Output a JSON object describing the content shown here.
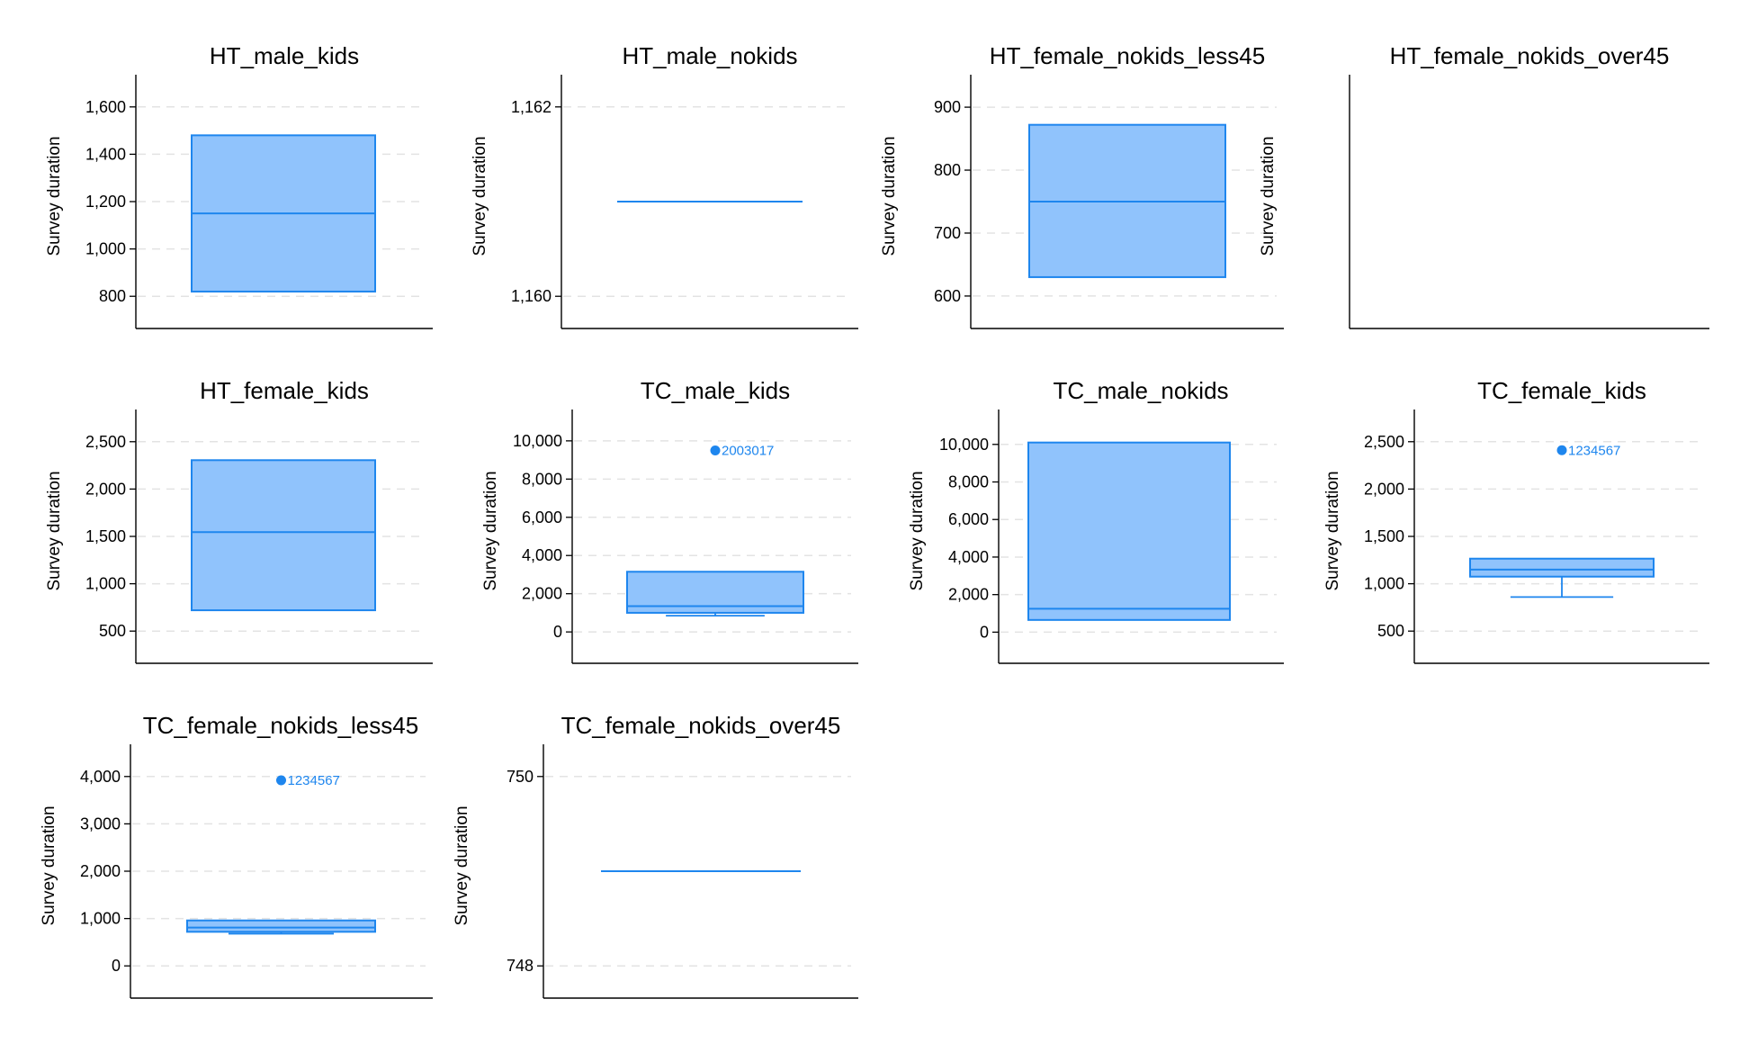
{
  "colors": {
    "box_fill": "#90c3fc",
    "box_stroke": "#1e86ee",
    "grid": "#e3e3e3",
    "axis": "#000000"
  },
  "chart_data": [
    {
      "type": "box",
      "title": "HT_male_kids",
      "ylabel": "Survey duration",
      "ylim": [
        740,
        1660
      ],
      "ticks": [
        800,
        1000,
        1200,
        1400,
        1600
      ],
      "tick_labels": [
        "800",
        "1,000",
        "1,200",
        "1,400",
        "1,600"
      ],
      "box": {
        "q1": 820,
        "median": 1150,
        "q3": 1480,
        "whisker_low": 820,
        "whisker_high": 1480
      },
      "outliers": []
    },
    {
      "type": "box",
      "title": "HT_male_nokids",
      "ylabel": "Survey duration",
      "ylim": [
        1159.85,
        1162.15
      ],
      "ticks": [
        1160,
        1162
      ],
      "tick_labels": [
        "1,160",
        "1,162"
      ],
      "box": {
        "q1": 1161,
        "median": 1161,
        "q3": 1161,
        "whisker_low": 1161,
        "whisker_high": 1161
      },
      "outliers": []
    },
    {
      "type": "box",
      "title": "HT_female_nokids_less45",
      "ylabel": "Survey duration",
      "ylim": [
        577,
        923
      ],
      "ticks": [
        600,
        700,
        800,
        900
      ],
      "tick_labels": [
        "600",
        "700",
        "800",
        "900"
      ],
      "box": {
        "q1": 630,
        "median": 750,
        "q3": 872,
        "whisker_low": 630,
        "whisker_high": 872
      },
      "outliers": []
    },
    {
      "type": "box",
      "title": "HT_female_nokids_over45",
      "ylabel": "Survey duration",
      "ylim": [
        0,
        1
      ],
      "ticks": [],
      "tick_labels": [],
      "box": null,
      "outliers": []
    },
    {
      "type": "box",
      "title": "HT_female_kids",
      "ylabel": "Survey duration",
      "ylim": [
        350,
        2650
      ],
      "ticks": [
        500,
        1000,
        1500,
        2000,
        2500
      ],
      "tick_labels": [
        "500",
        "1,000",
        "1,500",
        "2,000",
        "2,500"
      ],
      "box": {
        "q1": 720,
        "median": 1545,
        "q3": 2305,
        "whisker_low": 720,
        "whisker_high": 2305
      },
      "outliers": []
    },
    {
      "type": "box",
      "title": "TC_male_kids",
      "ylabel": "Survey duration",
      "ylim": [
        -700,
        10700
      ],
      "ticks": [
        0,
        2000,
        4000,
        6000,
        8000,
        10000
      ],
      "tick_labels": [
        "0",
        "2,000",
        "4,000",
        "6,000",
        "8,000",
        "10,000"
      ],
      "box": {
        "q1": 1000,
        "median": 1350,
        "q3": 3150,
        "whisker_low": 850,
        "whisker_high": 3150
      },
      "outliers": [
        {
          "value": 9500,
          "label": "2003017"
        }
      ]
    },
    {
      "type": "box",
      "title": "TC_male_nokids",
      "ylabel": "Survey duration",
      "ylim": [
        -700,
        10900
      ],
      "ticks": [
        0,
        2000,
        4000,
        6000,
        8000,
        10000
      ],
      "tick_labels": [
        "0",
        "2,000",
        "4,000",
        "6,000",
        "8,000",
        "10,000"
      ],
      "box": {
        "q1": 650,
        "median": 1250,
        "q3": 10100,
        "whisker_low": 650,
        "whisker_high": 10100
      },
      "outliers": []
    },
    {
      "type": "box",
      "title": "TC_female_kids",
      "ylabel": "Survey duration",
      "ylim": [
        350,
        2650
      ],
      "ticks": [
        500,
        1000,
        1500,
        2000,
        2500
      ],
      "tick_labels": [
        "500",
        "1,000",
        "1,500",
        "2,000",
        "2,500"
      ],
      "box": {
        "q1": 1075,
        "median": 1150,
        "q3": 1265,
        "whisker_low": 860,
        "whisker_high": 1265
      },
      "outliers": [
        {
          "value": 2410,
          "label": "1234567"
        }
      ]
    },
    {
      "type": "box",
      "title": "TC_female_nokids_less45",
      "ylabel": "Survey duration",
      "ylim": [
        -300,
        4300
      ],
      "ticks": [
        0,
        1000,
        2000,
        3000,
        4000
      ],
      "tick_labels": [
        "0",
        "1,000",
        "2,000",
        "3,000",
        "4,000"
      ],
      "box": {
        "q1": 720,
        "median": 810,
        "q3": 960,
        "whisker_low": 680,
        "whisker_high": 960
      },
      "outliers": [
        {
          "value": 3920,
          "label": "1234567"
        }
      ]
    },
    {
      "type": "box",
      "title": "TC_female_nokids_over45",
      "ylabel": "Survey duration",
      "ylim": [
        747.85,
        750.15
      ],
      "ticks": [
        748,
        750
      ],
      "tick_labels": [
        "748",
        "750"
      ],
      "box": {
        "q1": 749,
        "median": 749,
        "q3": 749,
        "whisker_low": 749,
        "whisker_high": 749
      },
      "outliers": []
    }
  ]
}
